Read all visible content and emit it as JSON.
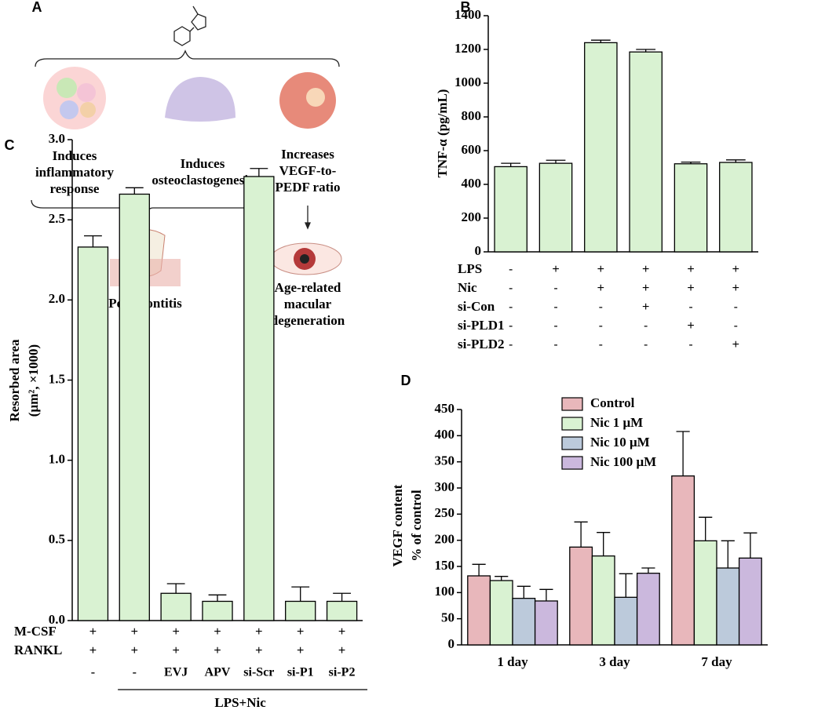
{
  "diagram": {
    "panel": "A",
    "effects": [
      [
        "Induces",
        "inflammatory",
        "response"
      ],
      [
        "Induces",
        "osteoclastogenesis"
      ],
      [
        "Increases",
        "VEGF-to-",
        "PEDF ratio"
      ]
    ],
    "outcomes": [
      [
        "Periodontitis"
      ],
      [
        "Age-related",
        "macular",
        "degeneration"
      ]
    ]
  },
  "chart_data": [
    {
      "type": "bar",
      "panel": "B",
      "y_label": [
        "TNF-α (pg/mL)"
      ],
      "color": "#d9f2d2",
      "values": [
        505,
        525,
        1240,
        1185,
        522,
        530
      ],
      "errors": [
        20,
        18,
        15,
        15,
        10,
        15
      ],
      "ylim": [
        0,
        1400
      ],
      "yticks": [
        0,
        200,
        400,
        600,
        800,
        1000,
        1200,
        1400
      ],
      "conditions": [
        {
          "name": "LPS",
          "marks": [
            "-",
            "+",
            "+",
            "+",
            "+",
            "+"
          ]
        },
        {
          "name": "Nic",
          "marks": [
            "-",
            "-",
            "+",
            "+",
            "+",
            "+"
          ]
        },
        {
          "name": "si-Con",
          "marks": [
            "-",
            "-",
            "-",
            "+",
            "-",
            "-"
          ]
        },
        {
          "name": "si-PLD1",
          "marks": [
            "-",
            "-",
            "-",
            "-",
            "+",
            "-"
          ]
        },
        {
          "name": "si-PLD2",
          "marks": [
            "-",
            "-",
            "-",
            "-",
            "-",
            "+"
          ]
        }
      ]
    },
    {
      "type": "bar",
      "panel": "C",
      "y_label": [
        "Resorbed area",
        "(μm², ×1000)"
      ],
      "color": "#d9f2d2",
      "values": [
        2.33,
        2.66,
        0.17,
        0.12,
        2.77,
        0.12,
        0.12
      ],
      "errors": [
        0.07,
        0.04,
        0.06,
        0.04,
        0.05,
        0.09,
        0.05
      ],
      "ylim": [
        0,
        3
      ],
      "yticks": [
        {
          "value": 0,
          "label": "0.0"
        },
        {
          "value": 0.5,
          "label": "0.5"
        },
        {
          "value": 1,
          "label": "1.0"
        },
        {
          "value": 1.5,
          "label": "1.5"
        },
        {
          "value": 2,
          "label": "2.0"
        },
        {
          "value": 2.5,
          "label": "2.5"
        },
        {
          "value": 3,
          "label": "3.0"
        }
      ],
      "conditions": [
        {
          "name": "M-CSF",
          "marks": [
            "+",
            "+",
            "+",
            "+",
            "+",
            "+",
            "+"
          ]
        },
        {
          "name": "RANKL",
          "marks": [
            "+",
            "+",
            "+",
            "+",
            "+",
            "+",
            "+"
          ]
        }
      ],
      "categories": [
        "-",
        "-",
        "EVJ",
        "APV",
        "si-Scr",
        "si-P1",
        "si-P2"
      ],
      "group_label": "LPS+Nic"
    },
    {
      "type": "grouped_bar",
      "panel": "D",
      "y_label": [
        "VEGF content",
        "% of control"
      ],
      "categories": [
        "1 day",
        "3 day",
        "7 day"
      ],
      "series": [
        {
          "name": "Control",
          "color": "#e8b7bb",
          "values": [
            132,
            187,
            323
          ],
          "errors": [
            22,
            48,
            85
          ]
        },
        {
          "name": "Nic 1 μM",
          "color": "#d9f2d2",
          "values": [
            123,
            170,
            199
          ],
          "errors": [
            8,
            45,
            45
          ]
        },
        {
          "name": "Nic 10 μM",
          "color": "#bccadb",
          "values": [
            89,
            91,
            147
          ],
          "errors": [
            23,
            45,
            52
          ]
        },
        {
          "name": "Nic 100 μM",
          "color": "#cbb8dd",
          "values": [
            84,
            137,
            166
          ],
          "errors": [
            22,
            10,
            48
          ]
        }
      ],
      "ylim": [
        0,
        450
      ],
      "yticks": [
        0,
        50,
        100,
        150,
        200,
        250,
        300,
        350,
        400,
        450
      ],
      "legend": "upper right"
    }
  ]
}
